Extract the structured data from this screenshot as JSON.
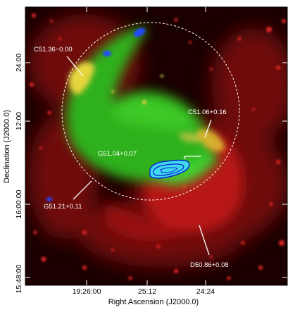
{
  "figure": {
    "x_axis_label": "Right Ascension (J2000.0)",
    "y_axis_label": "Declination (J2000.0)",
    "x_ticks": [
      "19:26:00",
      "25:12",
      "24:24"
    ],
    "y_ticks": [
      "15:48:00",
      "16:00:00",
      "12:00",
      "24:00"
    ],
    "annotations": [
      {
        "id": "c5136",
        "text": "C51.36−0.00"
      },
      {
        "id": "c5106",
        "text": "C51.06+0.16"
      },
      {
        "id": "g5104",
        "text": "G51.04+0.07"
      },
      {
        "id": "g5121",
        "text": "G51.21+0.11"
      },
      {
        "id": "d5086",
        "text": "D50.86+0.08"
      }
    ],
    "colors": {
      "background": "#1a0000",
      "red_emission": "#c01818",
      "green_shell": "#33cc22",
      "yellow_rim": "#e8d640",
      "cyan_contour_fill": "#3fd8ee",
      "contour_line": "#0a1fd0",
      "circle_stroke": "#ffffff"
    }
  }
}
